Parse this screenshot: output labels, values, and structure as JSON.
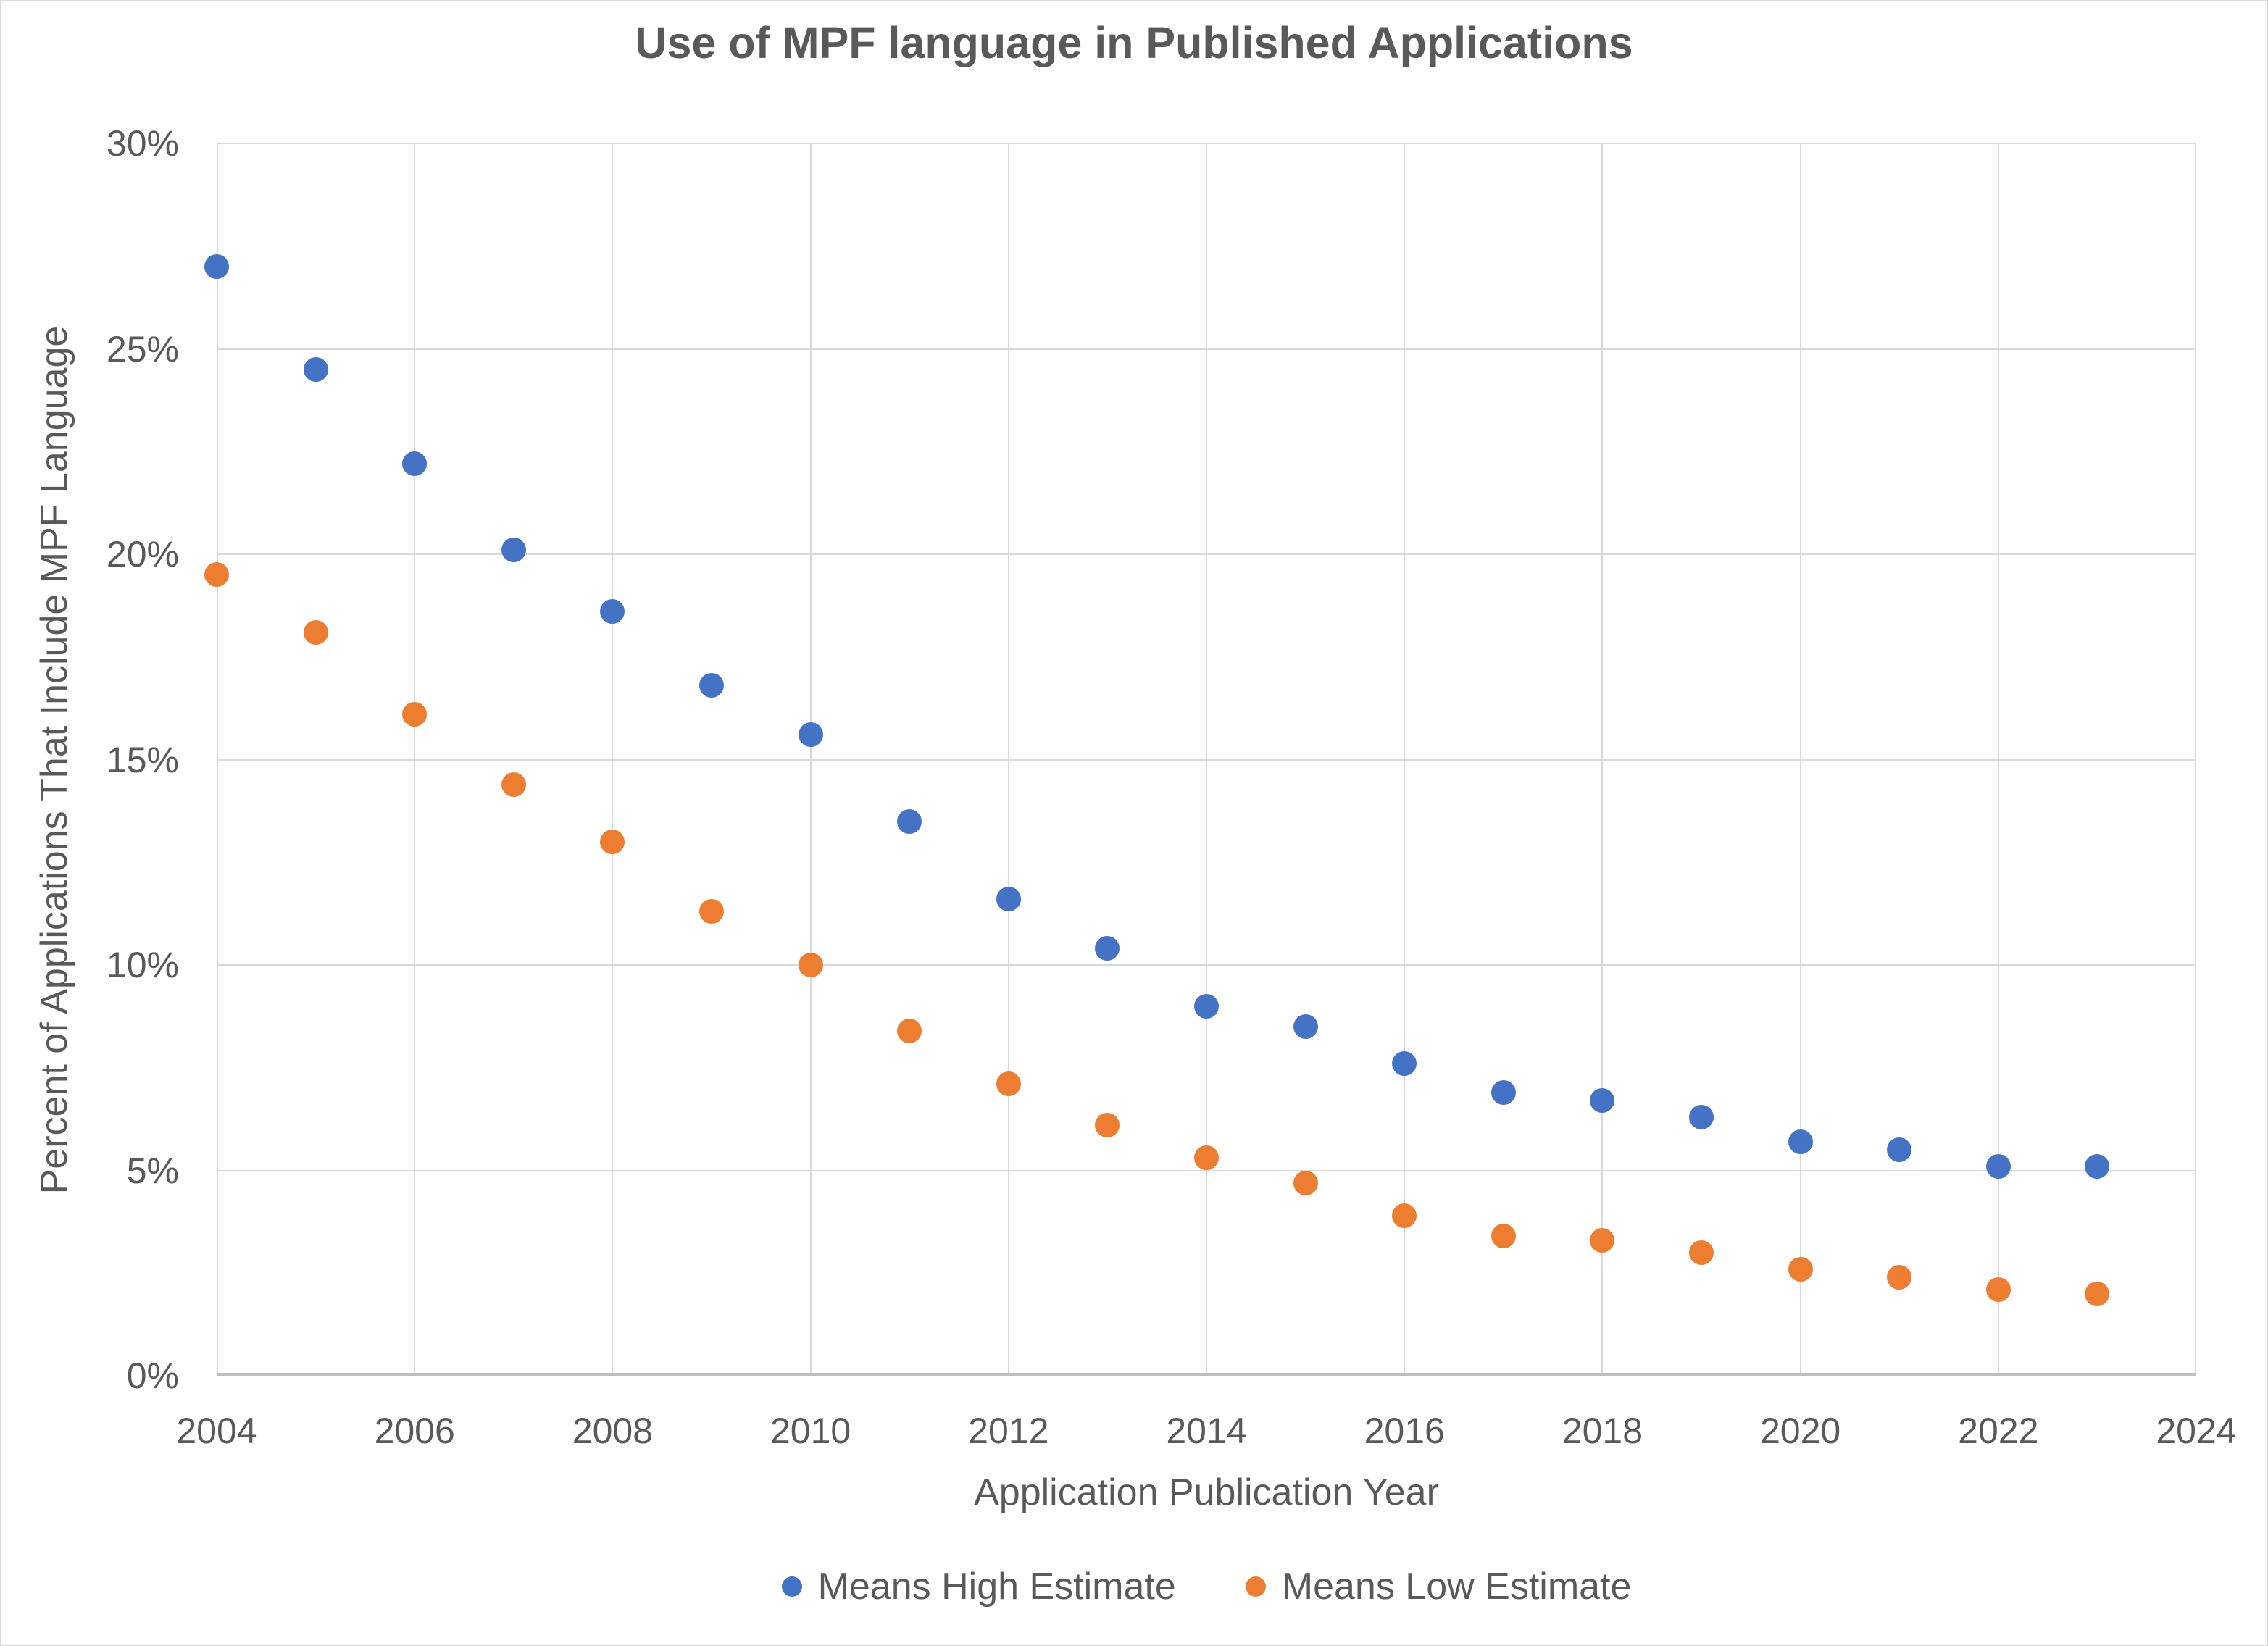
{
  "chart_data": {
    "type": "scatter",
    "title": "Use of MPF language in Published Applications",
    "xlabel": "Application Publication Year",
    "ylabel": "Percent of Applications That Include MPF Language",
    "xlim": [
      2004,
      2024
    ],
    "ylim": [
      0,
      30
    ],
    "grid": true,
    "legend_position": "bottom",
    "x_ticks": [
      2004,
      2006,
      2008,
      2010,
      2012,
      2014,
      2016,
      2018,
      2020,
      2022,
      2024
    ],
    "x_tick_labels": [
      "2004",
      "2006",
      "2008",
      "2010",
      "2012",
      "2014",
      "2016",
      "2018",
      "2020",
      "2022",
      "2024"
    ],
    "y_ticks": [
      0,
      5,
      10,
      15,
      20,
      25,
      30
    ],
    "y_tick_labels": [
      "0%",
      "5%",
      "10%",
      "15%",
      "20%",
      "25%",
      "30%"
    ],
    "x": [
      2004,
      2005,
      2006,
      2007,
      2008,
      2009,
      2010,
      2011,
      2012,
      2013,
      2014,
      2015,
      2016,
      2017,
      2018,
      2019,
      2020,
      2021,
      2022,
      2023
    ],
    "series": [
      {
        "name": "Means High Estimate",
        "color": "#4472c4",
        "values": [
          27.0,
          24.5,
          22.2,
          20.1,
          18.6,
          16.8,
          15.6,
          13.5,
          11.6,
          10.4,
          9.0,
          8.5,
          7.6,
          6.9,
          6.7,
          6.3,
          5.7,
          5.5,
          5.1,
          5.1
        ]
      },
      {
        "name": "Means Low Estimate",
        "color": "#ed7d31",
        "values": [
          19.5,
          18.1,
          16.1,
          14.4,
          13.0,
          11.3,
          10.0,
          8.4,
          7.1,
          6.1,
          5.3,
          4.7,
          3.9,
          3.4,
          3.3,
          3.0,
          2.6,
          2.4,
          2.1,
          2.0
        ]
      }
    ],
    "colors": {
      "gridline": "#d9d9d9",
      "axis_line": "#bfbfbf",
      "text": "#595959"
    }
  }
}
